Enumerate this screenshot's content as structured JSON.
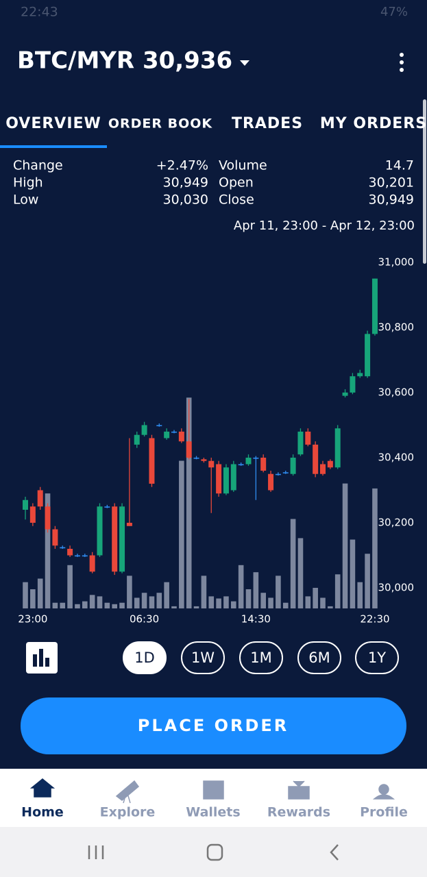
{
  "status_bar": {
    "time": "22:43",
    "battery": "47%"
  },
  "header": {
    "title": "BTC/MYR 30,936"
  },
  "tabs": [
    "OVERVIEW",
    "ORDER BOOK",
    "TRADES",
    "MY ORDERS"
  ],
  "active_tab": "OVERVIEW",
  "stats": [
    [
      "Change",
      "+2.47%",
      "Volume",
      "14.7"
    ],
    [
      "High",
      "30,949",
      "Open",
      "30,201"
    ],
    [
      "Low",
      "30,030",
      "Close",
      "30,949"
    ]
  ],
  "date_range": "Apr 11, 23:00 - Apr 12, 23:00",
  "chart_data": {
    "type": "candlestick",
    "categories": [
      null,
      "23:00",
      null,
      null,
      null,
      null,
      null,
      null,
      null,
      null,
      null,
      null,
      null,
      null,
      null,
      null,
      "06:30",
      null,
      null,
      null,
      null,
      null,
      null,
      null,
      null,
      null,
      null,
      null,
      null,
      null,
      null,
      "14:30",
      null,
      null,
      null,
      null,
      null,
      null,
      null,
      null,
      null,
      null,
      null,
      null,
      null,
      null,
      null,
      "22:30"
    ],
    "open": [
      30240,
      30250,
      30300,
      30250,
      30180,
      30125,
      30120,
      30100,
      30100,
      30100,
      30100,
      30250,
      30250,
      30050,
      30200,
      30440,
      30470,
      30460,
      30500,
      30460,
      30480,
      30480,
      30450,
      30400,
      30395,
      30390,
      30380,
      30290,
      30300,
      30380,
      30380,
      30400,
      30400,
      30350,
      30350,
      30355,
      30350,
      30410,
      30480,
      30440,
      30380,
      30390,
      30370,
      30590,
      30600,
      30650,
      30650,
      30780
    ],
    "high": [
      30280,
      30260,
      30310,
      30260,
      30190,
      30130,
      30130,
      30105,
      30105,
      30110,
      30260,
      30255,
      30260,
      30260,
      30460,
      30480,
      30510,
      30470,
      30505,
      30490,
      30485,
      30490,
      30580,
      30405,
      30400,
      30400,
      30390,
      30380,
      30390,
      30385,
      30410,
      30405,
      30410,
      30360,
      30355,
      30360,
      30410,
      30490,
      30490,
      30450,
      30390,
      30395,
      30500,
      30610,
      30660,
      30670,
      30790,
      30950
    ],
    "low": [
      30210,
      30190,
      30240,
      30170,
      30120,
      30120,
      30095,
      30095,
      30095,
      30045,
      30095,
      30245,
      30040,
      30045,
      30190,
      30430,
      30465,
      30310,
      30495,
      30455,
      30475,
      30445,
      30395,
      30395,
      30385,
      30230,
      30280,
      30285,
      30295,
      30375,
      30375,
      30270,
      30355,
      30295,
      30345,
      30350,
      30345,
      30405,
      30435,
      30340,
      30345,
      30365,
      30365,
      30585,
      30595,
      30645,
      30645,
      30775
    ],
    "close": [
      30270,
      30200,
      30250,
      30180,
      30130,
      30125,
      30100,
      30100,
      30100,
      30050,
      30250,
      30250,
      30050,
      30250,
      30190,
      30470,
      30500,
      30320,
      30500,
      30480,
      30480,
      30450,
      30400,
      30400,
      30390,
      30370,
      30290,
      30370,
      30380,
      30380,
      30400,
      30400,
      30360,
      30300,
      30350,
      30355,
      30400,
      30480,
      30440,
      30350,
      30350,
      30370,
      30490,
      30600,
      30650,
      30660,
      30780,
      30950
    ],
    "volume": [
      0.37,
      0.27,
      0.42,
      1.62,
      0.08,
      0.08,
      0.61,
      0.06,
      0.1,
      0.19,
      0.17,
      0.08,
      0.06,
      0.08,
      0.46,
      0.15,
      0.22,
      0.17,
      0.22,
      0.37,
      0.03,
      2.08,
      2.97,
      0.03,
      0.46,
      0.17,
      0.14,
      0.17,
      0.1,
      0.61,
      0.27,
      0.51,
      0.22,
      0.15,
      0.46,
      0.08,
      1.26,
      0.99,
      0.17,
      0.29,
      0.15,
      0.03,
      0.48,
      1.76,
      0.97,
      0.37,
      0.77,
      1.69
    ],
    "up_color": "#17a57a",
    "down_color": "#e9483a",
    "flat_color": "#2f8cf0",
    "volume_color": "#8a94aa",
    "ylim": [
      29937,
      31027
    ],
    "yticks": [
      {
        "value": 30000,
        "label": "30,000"
      },
      {
        "value": 30200,
        "label": "30,200"
      },
      {
        "value": 30400,
        "label": "30,400"
      },
      {
        "value": 30600,
        "label": "30,600"
      },
      {
        "value": 30800,
        "label": "30,800"
      },
      {
        "value": 31000,
        "label": "31,000"
      }
    ],
    "y2lim": [
      0,
      5
    ]
  },
  "periods": [
    "1D",
    "1W",
    "1M",
    "6M",
    "1Y"
  ],
  "active_period": "1D",
  "button": "PLACE ORDER",
  "nav": [
    "Home",
    "Explore",
    "Wallets",
    "Rewards",
    "Profile"
  ],
  "active_nav": "Home"
}
